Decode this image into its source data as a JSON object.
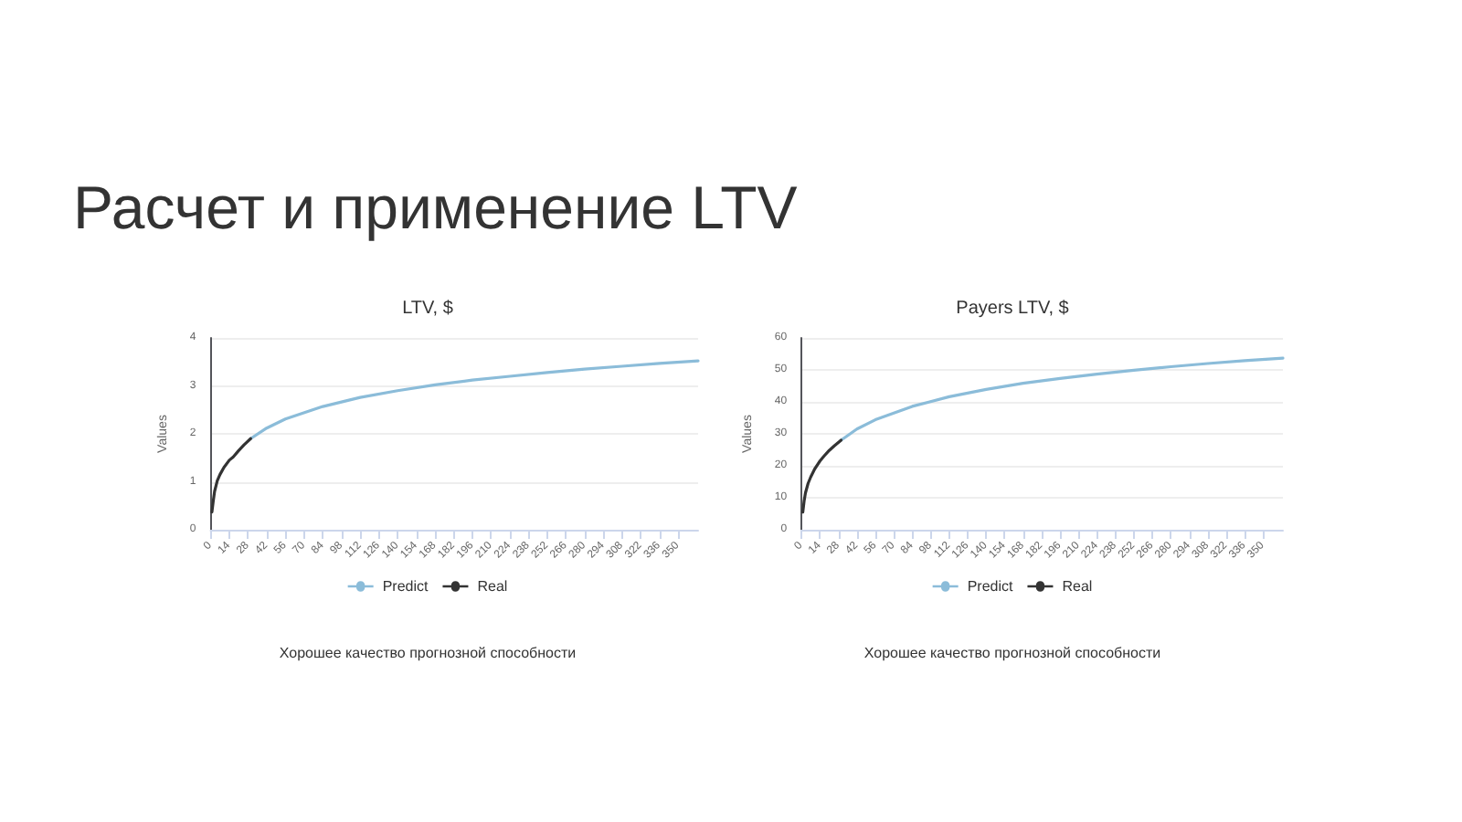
{
  "chart_data": [
    {
      "type": "line",
      "title": "LTV, $",
      "ylabel": "Values",
      "annotations": [
        "Расчет и применение LTV",
        "Хорошее качество прогнозной способности"
      ],
      "xlim": [
        0,
        365
      ],
      "xticks": [
        0,
        14,
        28,
        42,
        56,
        70,
        84,
        98,
        112,
        126,
        140,
        154,
        168,
        182,
        196,
        210,
        224,
        238,
        252,
        266,
        280,
        294,
        308,
        322,
        336,
        350
      ],
      "ylim": [
        0,
        4
      ],
      "yticks": [
        0,
        1,
        2,
        3,
        4
      ],
      "grid": "y",
      "legend": "bottom",
      "marker": "none",
      "line_style": "solid",
      "series": [
        {
          "name": "Predict",
          "color": "#8bbcd9",
          "x": [
            30,
            42,
            56,
            84,
            112,
            140,
            168,
            196,
            224,
            252,
            280,
            308,
            336,
            365
          ],
          "values": [
            1.9,
            2.12,
            2.31,
            2.57,
            2.76,
            2.9,
            3.02,
            3.12,
            3.2,
            3.28,
            3.35,
            3.41,
            3.47,
            3.52
          ]
        },
        {
          "name": "Real",
          "color": "#333333",
          "x": [
            1,
            2,
            3,
            5,
            7,
            10,
            14,
            17,
            21,
            25,
            30
          ],
          "values": [
            0.37,
            0.6,
            0.8,
            1.02,
            1.15,
            1.3,
            1.45,
            1.52,
            1.65,
            1.77,
            1.9
          ]
        }
      ]
    },
    {
      "type": "line",
      "title": "Payers LTV, $",
      "ylabel": "Values",
      "annotations": [
        "Хорошее качество прогнозной способности"
      ],
      "xlim": [
        0,
        365
      ],
      "xticks": [
        0,
        14,
        28,
        42,
        56,
        70,
        84,
        98,
        112,
        126,
        140,
        154,
        168,
        182,
        196,
        210,
        224,
        238,
        252,
        266,
        280,
        294,
        308,
        322,
        336,
        350
      ],
      "ylim": [
        0,
        60
      ],
      "yticks": [
        0,
        10,
        20,
        30,
        40,
        50,
        60
      ],
      "grid": "y",
      "legend": "bottom",
      "marker": "none",
      "line_style": "solid",
      "series": [
        {
          "name": "Predict",
          "color": "#8bbcd9",
          "x": [
            30,
            42,
            56,
            84,
            112,
            140,
            168,
            196,
            224,
            252,
            280,
            308,
            336,
            365
          ],
          "values": [
            28,
            31.5,
            34.4,
            38.6,
            41.6,
            43.9,
            45.8,
            47.3,
            48.7,
            49.9,
            51,
            52,
            52.9,
            53.7
          ]
        },
        {
          "name": "Real",
          "color": "#333333",
          "x": [
            1,
            2,
            3,
            5,
            7,
            10,
            14,
            17,
            21,
            25,
            30
          ],
          "values": [
            5.5,
            9,
            11.5,
            14.5,
            16.5,
            19,
            21.5,
            23,
            24.8,
            26.3,
            28
          ]
        }
      ]
    }
  ]
}
